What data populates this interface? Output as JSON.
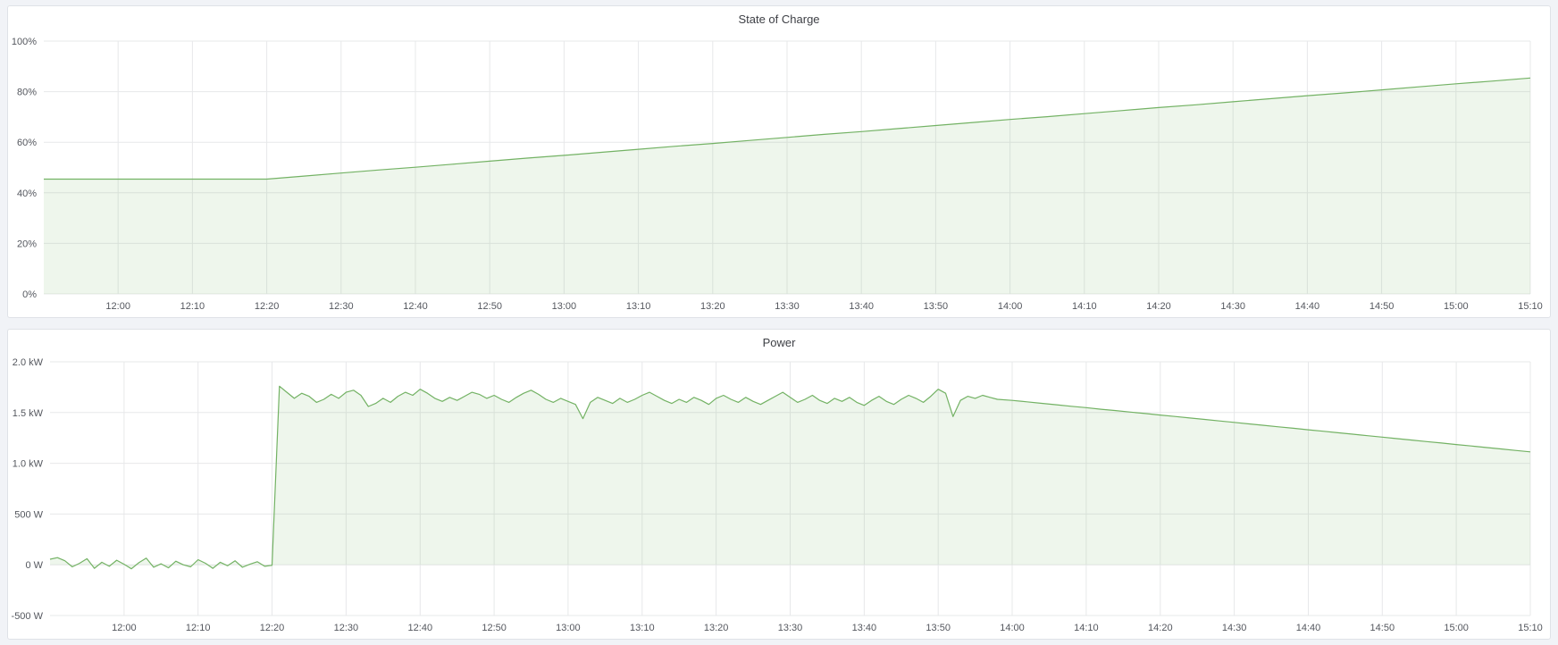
{
  "theme": {
    "page_bg": "#f1f3f7",
    "panel_bg": "#ffffff",
    "panel_border": "#dfe2e7",
    "grid": "#e7e8ea",
    "tick_text": "#54575e",
    "title_text": "#3e4046",
    "accent_green": "#73b264",
    "fill_green": "rgba(115,178,100,0.12)"
  },
  "chart_data": [
    {
      "type": "area",
      "title": "State of Charge",
      "x_unit": "minutes after 11:50",
      "xlim": [
        0,
        200
      ],
      "ylim": [
        0,
        100
      ],
      "baseline": 0,
      "grid": true,
      "legend": "none",
      "line_color": "#73b264",
      "fill_color": "rgba(115,178,100,0.12)",
      "yticks": [
        {
          "v": 0,
          "label": "0%"
        },
        {
          "v": 20,
          "label": "20%"
        },
        {
          "v": 40,
          "label": "40%"
        },
        {
          "v": 60,
          "label": "60%"
        },
        {
          "v": 80,
          "label": "80%"
        },
        {
          "v": 100,
          "label": "100%"
        }
      ],
      "xticks": [
        {
          "v": 10,
          "label": "12:00"
        },
        {
          "v": 20,
          "label": "12:10"
        },
        {
          "v": 30,
          "label": "12:20"
        },
        {
          "v": 40,
          "label": "12:30"
        },
        {
          "v": 50,
          "label": "12:40"
        },
        {
          "v": 60,
          "label": "12:50"
        },
        {
          "v": 70,
          "label": "13:00"
        },
        {
          "v": 80,
          "label": "13:10"
        },
        {
          "v": 90,
          "label": "13:20"
        },
        {
          "v": 100,
          "label": "13:30"
        },
        {
          "v": 110,
          "label": "13:40"
        },
        {
          "v": 120,
          "label": "13:50"
        },
        {
          "v": 130,
          "label": "14:00"
        },
        {
          "v": 140,
          "label": "14:10"
        },
        {
          "v": 150,
          "label": "14:20"
        },
        {
          "v": 160,
          "label": "14:30"
        },
        {
          "v": 170,
          "label": "14:40"
        },
        {
          "v": 180,
          "label": "14:50"
        },
        {
          "v": 190,
          "label": "15:00"
        },
        {
          "v": 200,
          "label": "15:10"
        }
      ],
      "x": [
        0,
        5,
        10,
        15,
        20,
        25,
        30,
        35,
        40,
        45,
        50,
        55,
        60,
        65,
        70,
        75,
        80,
        85,
        90,
        95,
        100,
        105,
        110,
        115,
        120,
        125,
        130,
        135,
        140,
        145,
        150,
        155,
        160,
        165,
        170,
        175,
        180,
        185,
        190,
        195,
        200
      ],
      "values": [
        45.4,
        45.4,
        45.4,
        45.4,
        45.4,
        45.4,
        45.4,
        46.6,
        47.8,
        49.0,
        50.1,
        51.3,
        52.5,
        53.7,
        54.8,
        56.0,
        57.2,
        58.4,
        59.5,
        60.7,
        61.9,
        63.1,
        64.2,
        65.4,
        66.6,
        67.8,
        69.0,
        70.1,
        71.3,
        72.5,
        73.7,
        74.8,
        76.0,
        77.2,
        78.4,
        79.5,
        80.7,
        81.9,
        83.1,
        84.2,
        85.4
      ]
    },
    {
      "type": "area",
      "title": "Power",
      "x_unit": "minutes after 11:50",
      "xlim": [
        0,
        200
      ],
      "ylim": [
        -500,
        2000
      ],
      "baseline": 0,
      "grid": true,
      "legend": "none",
      "line_color": "#73b264",
      "fill_color": "rgba(115,178,100,0.12)",
      "yticks": [
        {
          "v": -500,
          "label": "-500 W"
        },
        {
          "v": 0,
          "label": "0 W"
        },
        {
          "v": 500,
          "label": "500 W"
        },
        {
          "v": 1000,
          "label": "1.0 kW"
        },
        {
          "v": 1500,
          "label": "1.5 kW"
        },
        {
          "v": 2000,
          "label": "2.0 kW"
        }
      ],
      "xticks": [
        {
          "v": 10,
          "label": "12:00"
        },
        {
          "v": 20,
          "label": "12:10"
        },
        {
          "v": 30,
          "label": "12:20"
        },
        {
          "v": 40,
          "label": "12:30"
        },
        {
          "v": 50,
          "label": "12:40"
        },
        {
          "v": 60,
          "label": "12:50"
        },
        {
          "v": 70,
          "label": "13:00"
        },
        {
          "v": 80,
          "label": "13:10"
        },
        {
          "v": 90,
          "label": "13:20"
        },
        {
          "v": 100,
          "label": "13:30"
        },
        {
          "v": 110,
          "label": "13:40"
        },
        {
          "v": 120,
          "label": "13:50"
        },
        {
          "v": 130,
          "label": "14:00"
        },
        {
          "v": 140,
          "label": "14:10"
        },
        {
          "v": 150,
          "label": "14:20"
        },
        {
          "v": 160,
          "label": "14:30"
        },
        {
          "v": 170,
          "label": "14:40"
        },
        {
          "v": 180,
          "label": "14:50"
        },
        {
          "v": 190,
          "label": "15:00"
        },
        {
          "v": 200,
          "label": "15:10"
        }
      ],
      "x": [
        0,
        1,
        2,
        3,
        4,
        5,
        6,
        7,
        8,
        9,
        10,
        11,
        12,
        13,
        14,
        15,
        16,
        17,
        18,
        19,
        20,
        21,
        22,
        23,
        24,
        25,
        26,
        27,
        28,
        29,
        30,
        31,
        32,
        33,
        34,
        35,
        36,
        37,
        38,
        39,
        40,
        41,
        42,
        43,
        44,
        45,
        46,
        47,
        48,
        49,
        50,
        51,
        52,
        53,
        54,
        55,
        56,
        57,
        58,
        59,
        60,
        61,
        62,
        63,
        64,
        65,
        66,
        67,
        68,
        69,
        70,
        71,
        72,
        73,
        74,
        75,
        76,
        77,
        78,
        79,
        80,
        81,
        82,
        83,
        84,
        85,
        86,
        87,
        88,
        89,
        90,
        91,
        92,
        93,
        94,
        95,
        96,
        97,
        98,
        99,
        100,
        101,
        102,
        103,
        104,
        105,
        106,
        107,
        108,
        109,
        110,
        111,
        112,
        113,
        114,
        115,
        116,
        117,
        118,
        119,
        120,
        121,
        122,
        123,
        124,
        125,
        126,
        127,
        128,
        130,
        132,
        134,
        136,
        138,
        140,
        142,
        144,
        146,
        148,
        150,
        152,
        154,
        156,
        158,
        160,
        162,
        164,
        166,
        168,
        170,
        172,
        174,
        176,
        178,
        180,
        182,
        184,
        186,
        188,
        190,
        192,
        194,
        196,
        198,
        200
      ],
      "values": [
        55,
        70,
        40,
        -20,
        15,
        60,
        -35,
        25,
        -15,
        45,
        5,
        -40,
        20,
        65,
        -25,
        10,
        -30,
        35,
        0,
        -20,
        50,
        15,
        -35,
        25,
        -10,
        40,
        -25,
        5,
        30,
        -15,
        -5,
        1760,
        1700,
        1640,
        1690,
        1660,
        1600,
        1630,
        1680,
        1640,
        1700,
        1720,
        1670,
        1560,
        1590,
        1640,
        1600,
        1660,
        1700,
        1670,
        1730,
        1690,
        1640,
        1610,
        1650,
        1620,
        1660,
        1700,
        1680,
        1640,
        1670,
        1630,
        1600,
        1650,
        1690,
        1720,
        1680,
        1630,
        1600,
        1640,
        1610,
        1580,
        1440,
        1600,
        1650,
        1620,
        1590,
        1640,
        1600,
        1630,
        1670,
        1700,
        1660,
        1620,
        1590,
        1630,
        1600,
        1650,
        1620,
        1580,
        1640,
        1670,
        1630,
        1600,
        1650,
        1610,
        1580,
        1620,
        1660,
        1700,
        1650,
        1600,
        1630,
        1670,
        1620,
        1590,
        1640,
        1610,
        1650,
        1600,
        1570,
        1620,
        1660,
        1610,
        1580,
        1630,
        1670,
        1640,
        1600,
        1660,
        1730,
        1690,
        1460,
        1620,
        1660,
        1640,
        1670,
        1650,
        1630,
        1620,
        1606,
        1591,
        1577,
        1562,
        1548,
        1533,
        1519,
        1504,
        1490,
        1475,
        1461,
        1446,
        1432,
        1417,
        1403,
        1388,
        1374,
        1359,
        1345,
        1330,
        1316,
        1301,
        1287,
        1272,
        1258,
        1243,
        1229,
        1214,
        1200,
        1185,
        1171,
        1156,
        1142,
        1127,
        1113
      ]
    }
  ]
}
